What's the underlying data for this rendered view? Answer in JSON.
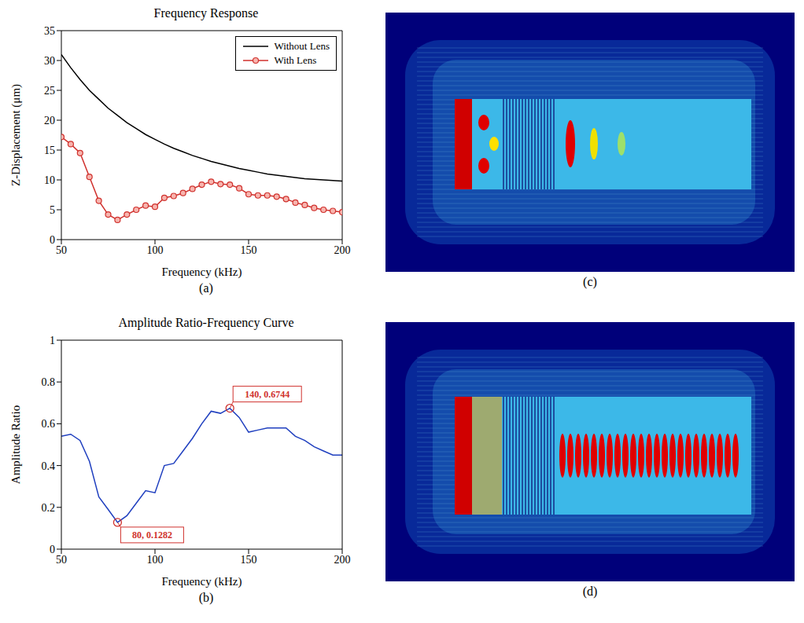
{
  "chart_data": [
    {
      "type": "line",
      "caption": "(a)",
      "title": "Frequency Response",
      "x_label": "Frequency (kHz)",
      "y_label": "Z-Displacement (μm)",
      "xlim": [
        50,
        200
      ],
      "xticks": [
        50,
        100,
        150,
        200
      ],
      "ylim": [
        0,
        35
      ],
      "yticks": [
        0,
        5,
        10,
        15,
        20,
        25,
        30,
        35
      ],
      "legend": "upper right",
      "x": [
        50,
        55,
        60,
        65,
        70,
        75,
        80,
        85,
        90,
        95,
        100,
        105,
        110,
        115,
        120,
        125,
        130,
        135,
        140,
        145,
        150,
        155,
        160,
        165,
        170,
        175,
        180,
        185,
        190,
        195,
        200
      ],
      "series": [
        {
          "name": "Without Lens",
          "color": "#000000",
          "marker": "none",
          "values": [
            31,
            28.8,
            26.8,
            25,
            23.5,
            22,
            20.8,
            19.6,
            18.6,
            17.6,
            16.8,
            16,
            15.3,
            14.7,
            14.1,
            13.6,
            13.1,
            12.7,
            12.3,
            11.9,
            11.6,
            11.3,
            11,
            10.8,
            10.6,
            10.4,
            10.2,
            10.1,
            10,
            9.9,
            9.8
          ]
        },
        {
          "name": "With Lens",
          "color": "#d0312d",
          "marker": "circle",
          "values": [
            17.2,
            16,
            14.5,
            10.5,
            6.5,
            4.2,
            3.3,
            4.2,
            5,
            5.7,
            5.5,
            7,
            7.3,
            7.8,
            8.5,
            9.2,
            9.7,
            9.3,
            9.2,
            8.6,
            7.6,
            7.4,
            7.4,
            7.2,
            6.8,
            6.2,
            5.8,
            5.3,
            5,
            4.8,
            4.6
          ]
        }
      ]
    },
    {
      "type": "line",
      "caption": "(b)",
      "title": "Amplitude Ratio-Frequency Curve",
      "x_label": "Frequency (kHz)",
      "y_label": "Amplitude Ratio",
      "xlim": [
        50,
        200
      ],
      "xticks": [
        50,
        100,
        150,
        200
      ],
      "ylim": [
        0,
        1
      ],
      "yticks": [
        0,
        0.2,
        0.4,
        0.6,
        0.8,
        1
      ],
      "color": "#1f3fbf",
      "x": [
        50,
        55,
        60,
        65,
        70,
        75,
        80,
        85,
        90,
        95,
        100,
        105,
        110,
        115,
        120,
        125,
        130,
        135,
        140,
        145,
        150,
        155,
        160,
        165,
        170,
        175,
        180,
        185,
        190,
        195,
        200
      ],
      "values": [
        0.54,
        0.55,
        0.52,
        0.42,
        0.25,
        0.19,
        0.1282,
        0.16,
        0.22,
        0.28,
        0.27,
        0.4,
        0.41,
        0.47,
        0.53,
        0.6,
        0.66,
        0.65,
        0.6744,
        0.63,
        0.56,
        0.57,
        0.58,
        0.58,
        0.58,
        0.54,
        0.52,
        0.49,
        0.47,
        0.45,
        0.45
      ],
      "annotations": [
        {
          "x": 140,
          "y": 0.6744,
          "text": "140, 0.6744"
        },
        {
          "x": 80,
          "y": 0.1282,
          "text": "80, 0.1282"
        }
      ]
    }
  ],
  "images": [
    {
      "caption": "(c)"
    },
    {
      "caption": "(d)"
    }
  ]
}
